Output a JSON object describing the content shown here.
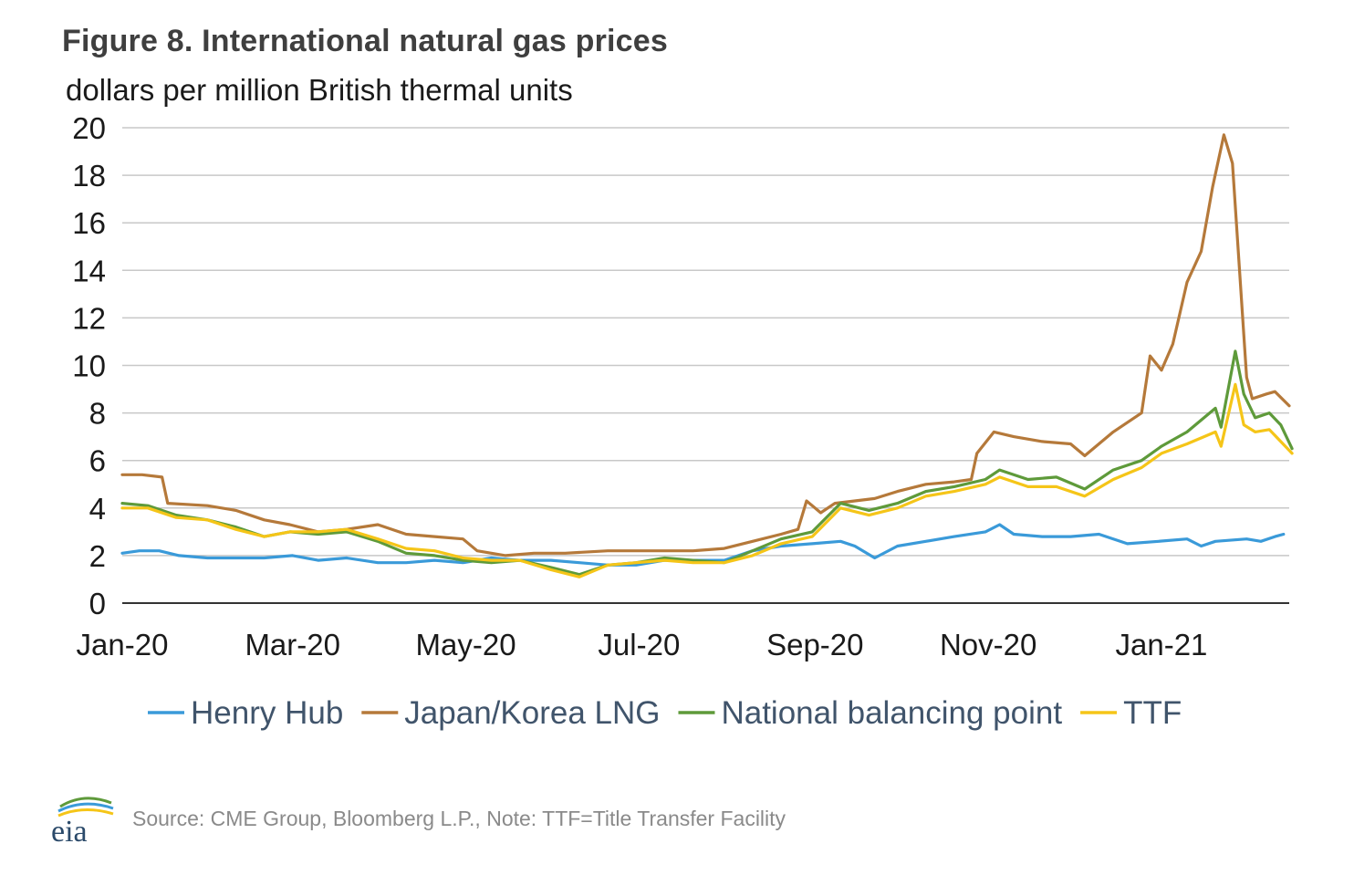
{
  "figure": {
    "title": "Figure 8. International natural gas prices",
    "subtitle": "dollars per million British thermal units",
    "source": "Source: CME Group, Bloomberg L.P., Note: TTF=Title Transfer Facility",
    "logo_text": "eia"
  },
  "colors": {
    "henry_hub": "#3a9ad9",
    "japan_korea": "#b5793a",
    "nbp": "#5e9a3a",
    "ttf": "#f5c518",
    "grid": "#c8c8c8",
    "axis": "#333333"
  },
  "chart_data": {
    "type": "line",
    "title": "Figure 8. International natural gas prices",
    "ylabel": "dollars per million British thermal units",
    "xlabel": "",
    "ylim": [
      0,
      20
    ],
    "xlim": [
      "2020-01-01",
      "2021-02-15"
    ],
    "yticks": [
      0,
      2,
      4,
      6,
      8,
      10,
      12,
      14,
      16,
      18,
      20
    ],
    "xticks": [
      {
        "date": "2020-01-01",
        "label": "Jan-20"
      },
      {
        "date": "2020-03-01",
        "label": "Mar-20"
      },
      {
        "date": "2020-05-01",
        "label": "May-20"
      },
      {
        "date": "2020-07-01",
        "label": "Jul-20"
      },
      {
        "date": "2020-09-01",
        "label": "Sep-20"
      },
      {
        "date": "2020-11-01",
        "label": "Nov-20"
      },
      {
        "date": "2021-01-01",
        "label": "Jan-21"
      }
    ],
    "grid": true,
    "legend_position": "bottom",
    "series": [
      {
        "name": "Henry Hub",
        "color_key": "henry_hub",
        "points": [
          [
            "2020-01-01",
            2.1
          ],
          [
            "2020-01-07",
            2.2
          ],
          [
            "2020-01-14",
            2.2
          ],
          [
            "2020-01-21",
            2.0
          ],
          [
            "2020-01-31",
            1.9
          ],
          [
            "2020-02-10",
            1.9
          ],
          [
            "2020-02-20",
            1.9
          ],
          [
            "2020-03-01",
            2.0
          ],
          [
            "2020-03-10",
            1.8
          ],
          [
            "2020-03-20",
            1.9
          ],
          [
            "2020-03-31",
            1.7
          ],
          [
            "2020-04-10",
            1.7
          ],
          [
            "2020-04-20",
            1.8
          ],
          [
            "2020-04-30",
            1.7
          ],
          [
            "2020-05-10",
            1.9
          ],
          [
            "2020-05-20",
            1.8
          ],
          [
            "2020-05-31",
            1.8
          ],
          [
            "2020-06-10",
            1.7
          ],
          [
            "2020-06-20",
            1.6
          ],
          [
            "2020-06-30",
            1.6
          ],
          [
            "2020-07-10",
            1.8
          ],
          [
            "2020-07-20",
            1.8
          ],
          [
            "2020-07-31",
            1.8
          ],
          [
            "2020-08-10",
            2.2
          ],
          [
            "2020-08-20",
            2.4
          ],
          [
            "2020-08-31",
            2.5
          ],
          [
            "2020-09-10",
            2.6
          ],
          [
            "2020-09-15",
            2.4
          ],
          [
            "2020-09-22",
            1.9
          ],
          [
            "2020-09-30",
            2.4
          ],
          [
            "2020-10-10",
            2.6
          ],
          [
            "2020-10-20",
            2.8
          ],
          [
            "2020-10-31",
            3.0
          ],
          [
            "2020-11-05",
            3.3
          ],
          [
            "2020-11-10",
            2.9
          ],
          [
            "2020-11-20",
            2.8
          ],
          [
            "2020-11-30",
            2.8
          ],
          [
            "2020-12-10",
            2.9
          ],
          [
            "2020-12-20",
            2.5
          ],
          [
            "2020-12-31",
            2.6
          ],
          [
            "2021-01-10",
            2.7
          ],
          [
            "2021-01-15",
            2.4
          ],
          [
            "2021-01-20",
            2.6
          ],
          [
            "2021-01-31",
            2.7
          ],
          [
            "2021-02-05",
            2.6
          ],
          [
            "2021-02-10",
            2.8
          ],
          [
            "2021-02-13",
            2.9
          ]
        ]
      },
      {
        "name": "Japan/Korea LNG",
        "color_key": "japan_korea",
        "points": [
          [
            "2020-01-01",
            5.4
          ],
          [
            "2020-01-08",
            5.4
          ],
          [
            "2020-01-15",
            5.3
          ],
          [
            "2020-01-17",
            4.2
          ],
          [
            "2020-01-31",
            4.1
          ],
          [
            "2020-02-10",
            3.9
          ],
          [
            "2020-02-20",
            3.5
          ],
          [
            "2020-02-29",
            3.3
          ],
          [
            "2020-03-10",
            3.0
          ],
          [
            "2020-03-20",
            3.1
          ],
          [
            "2020-03-31",
            3.3
          ],
          [
            "2020-04-10",
            2.9
          ],
          [
            "2020-04-20",
            2.8
          ],
          [
            "2020-04-30",
            2.7
          ],
          [
            "2020-05-05",
            2.2
          ],
          [
            "2020-05-15",
            2.0
          ],
          [
            "2020-05-25",
            2.1
          ],
          [
            "2020-06-05",
            2.1
          ],
          [
            "2020-06-20",
            2.2
          ],
          [
            "2020-06-30",
            2.2
          ],
          [
            "2020-07-10",
            2.2
          ],
          [
            "2020-07-20",
            2.2
          ],
          [
            "2020-07-31",
            2.3
          ],
          [
            "2020-08-10",
            2.6
          ],
          [
            "2020-08-20",
            2.9
          ],
          [
            "2020-08-26",
            3.1
          ],
          [
            "2020-08-29",
            4.3
          ],
          [
            "2020-09-03",
            3.8
          ],
          [
            "2020-09-08",
            4.2
          ],
          [
            "2020-09-15",
            4.3
          ],
          [
            "2020-09-22",
            4.4
          ],
          [
            "2020-09-30",
            4.7
          ],
          [
            "2020-10-10",
            5.0
          ],
          [
            "2020-10-20",
            5.1
          ],
          [
            "2020-10-26",
            5.2
          ],
          [
            "2020-10-28",
            6.3
          ],
          [
            "2020-11-03",
            7.2
          ],
          [
            "2020-11-10",
            7.0
          ],
          [
            "2020-11-20",
            6.8
          ],
          [
            "2020-11-30",
            6.7
          ],
          [
            "2020-12-05",
            6.2
          ],
          [
            "2020-12-15",
            7.2
          ],
          [
            "2020-12-25",
            8.0
          ],
          [
            "2020-12-28",
            10.4
          ],
          [
            "2021-01-01",
            9.8
          ],
          [
            "2021-01-05",
            10.9
          ],
          [
            "2021-01-10",
            13.5
          ],
          [
            "2021-01-15",
            14.8
          ],
          [
            "2021-01-19",
            17.5
          ],
          [
            "2021-01-23",
            19.7
          ],
          [
            "2021-01-26",
            18.5
          ],
          [
            "2021-01-31",
            9.5
          ],
          [
            "2021-02-02",
            8.6
          ],
          [
            "2021-02-07",
            8.8
          ],
          [
            "2021-02-10",
            8.9
          ],
          [
            "2021-02-15",
            8.3
          ]
        ]
      },
      {
        "name": "National balancing point",
        "color_key": "nbp",
        "points": [
          [
            "2020-01-01",
            4.2
          ],
          [
            "2020-01-10",
            4.1
          ],
          [
            "2020-01-20",
            3.7
          ],
          [
            "2020-01-31",
            3.5
          ],
          [
            "2020-02-10",
            3.2
          ],
          [
            "2020-02-20",
            2.8
          ],
          [
            "2020-02-29",
            3.0
          ],
          [
            "2020-03-10",
            2.9
          ],
          [
            "2020-03-20",
            3.0
          ],
          [
            "2020-03-31",
            2.6
          ],
          [
            "2020-04-10",
            2.1
          ],
          [
            "2020-04-20",
            2.0
          ],
          [
            "2020-04-30",
            1.8
          ],
          [
            "2020-05-10",
            1.7
          ],
          [
            "2020-05-20",
            1.8
          ],
          [
            "2020-05-31",
            1.5
          ],
          [
            "2020-06-10",
            1.2
          ],
          [
            "2020-06-20",
            1.6
          ],
          [
            "2020-06-30",
            1.7
          ],
          [
            "2020-07-10",
            1.9
          ],
          [
            "2020-07-20",
            1.8
          ],
          [
            "2020-07-31",
            1.7
          ],
          [
            "2020-08-10",
            2.2
          ],
          [
            "2020-08-20",
            2.7
          ],
          [
            "2020-08-31",
            3.0
          ],
          [
            "2020-09-10",
            4.2
          ],
          [
            "2020-09-20",
            3.9
          ],
          [
            "2020-09-30",
            4.2
          ],
          [
            "2020-10-10",
            4.7
          ],
          [
            "2020-10-20",
            4.9
          ],
          [
            "2020-10-31",
            5.2
          ],
          [
            "2020-11-05",
            5.6
          ],
          [
            "2020-11-15",
            5.2
          ],
          [
            "2020-11-25",
            5.3
          ],
          [
            "2020-12-05",
            4.8
          ],
          [
            "2020-12-15",
            5.6
          ],
          [
            "2020-12-25",
            6.0
          ],
          [
            "2021-01-01",
            6.6
          ],
          [
            "2021-01-10",
            7.2
          ],
          [
            "2021-01-20",
            8.2
          ],
          [
            "2021-01-22",
            7.4
          ],
          [
            "2021-01-27",
            10.6
          ],
          [
            "2021-01-30",
            8.8
          ],
          [
            "2021-02-03",
            7.8
          ],
          [
            "2021-02-08",
            8.0
          ],
          [
            "2021-02-12",
            7.5
          ],
          [
            "2021-02-16",
            6.5
          ]
        ]
      },
      {
        "name": "TTF",
        "color_key": "ttf",
        "points": [
          [
            "2020-01-01",
            4.0
          ],
          [
            "2020-01-10",
            4.0
          ],
          [
            "2020-01-20",
            3.6
          ],
          [
            "2020-01-31",
            3.5
          ],
          [
            "2020-02-10",
            3.1
          ],
          [
            "2020-02-20",
            2.8
          ],
          [
            "2020-02-29",
            3.0
          ],
          [
            "2020-03-10",
            3.0
          ],
          [
            "2020-03-20",
            3.1
          ],
          [
            "2020-03-31",
            2.7
          ],
          [
            "2020-04-10",
            2.3
          ],
          [
            "2020-04-20",
            2.2
          ],
          [
            "2020-04-30",
            1.9
          ],
          [
            "2020-05-10",
            1.8
          ],
          [
            "2020-05-20",
            1.8
          ],
          [
            "2020-05-31",
            1.4
          ],
          [
            "2020-06-10",
            1.1
          ],
          [
            "2020-06-20",
            1.6
          ],
          [
            "2020-06-30",
            1.7
          ],
          [
            "2020-07-10",
            1.8
          ],
          [
            "2020-07-20",
            1.7
          ],
          [
            "2020-07-31",
            1.7
          ],
          [
            "2020-08-10",
            2.0
          ],
          [
            "2020-08-20",
            2.5
          ],
          [
            "2020-08-31",
            2.8
          ],
          [
            "2020-09-10",
            4.0
          ],
          [
            "2020-09-20",
            3.7
          ],
          [
            "2020-09-30",
            4.0
          ],
          [
            "2020-10-10",
            4.5
          ],
          [
            "2020-10-20",
            4.7
          ],
          [
            "2020-10-31",
            5.0
          ],
          [
            "2020-11-05",
            5.3
          ],
          [
            "2020-11-15",
            4.9
          ],
          [
            "2020-11-25",
            4.9
          ],
          [
            "2020-12-05",
            4.5
          ],
          [
            "2020-12-15",
            5.2
          ],
          [
            "2020-12-25",
            5.7
          ],
          [
            "2021-01-01",
            6.3
          ],
          [
            "2021-01-10",
            6.7
          ],
          [
            "2021-01-20",
            7.2
          ],
          [
            "2021-01-22",
            6.6
          ],
          [
            "2021-01-27",
            9.2
          ],
          [
            "2021-01-30",
            7.5
          ],
          [
            "2021-02-03",
            7.2
          ],
          [
            "2021-02-08",
            7.3
          ],
          [
            "2021-02-12",
            6.8
          ],
          [
            "2021-02-16",
            6.3
          ]
        ]
      }
    ]
  }
}
